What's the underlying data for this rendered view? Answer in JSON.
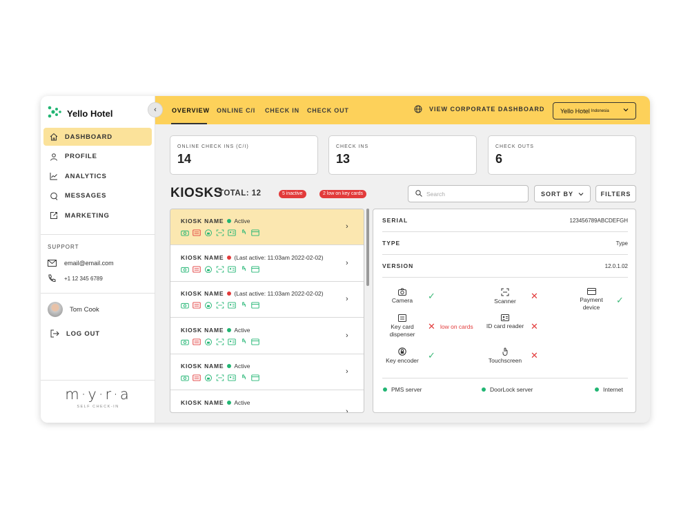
{
  "sidebar": {
    "brand_name": "Yello Hotel",
    "nav": [
      {
        "label": "DASHBOARD",
        "icon": "home-icon"
      },
      {
        "label": "PROFILE",
        "icon": "user-icon"
      },
      {
        "label": "ANALYTICS",
        "icon": "chart-icon"
      },
      {
        "label": "MESSAGES",
        "icon": "chat-icon"
      },
      {
        "label": "MARKETING",
        "icon": "external-link-icon"
      }
    ],
    "support_title": "SUPPORT",
    "email": "email@email.com",
    "phone": "+1 12 345 6789",
    "user_name": "Tom Cook",
    "logout_label": "LOG OUT",
    "footer_logo": "m·y·r·a",
    "footer_sub": "SELF CHECK-IN"
  },
  "topbar": {
    "tabs": [
      "OVERVIEW",
      "ONLINE C/I",
      "CHECK IN",
      "CHECK OUT"
    ],
    "corporate_link": "VIEW CORPORATE DASHBOARD",
    "hotel_select": "Yello Hotel",
    "hotel_select_sub": "Indonesia"
  },
  "stats": [
    {
      "label": "ONLINE CHECK INS (C/I)",
      "value": "14"
    },
    {
      "label": "CHECK INS",
      "value": "13"
    },
    {
      "label": "CHECK OUTS",
      "value": "6"
    }
  ],
  "kiosks": {
    "title": "KIOSKS",
    "total": "TOTAL: 12",
    "badge_inactive": "5 inactive",
    "badge_low": "2 low on key cards",
    "search_placeholder": "Search",
    "sort_label": "SORT BY",
    "filters_label": "FILTERS",
    "rows": [
      {
        "name": "KIOSK NAME",
        "status": "Active",
        "status_color": "#22b573"
      },
      {
        "name": "KIOSK NAME",
        "status": "(Last active: 11:03am 2022-02-02)",
        "status_color": "#e23b3b"
      },
      {
        "name": "KIOSK NAME",
        "status": "(Last active: 11:03am 2022-02-02)",
        "status_color": "#e23b3b"
      },
      {
        "name": "KIOSK NAME",
        "status": "Active",
        "status_color": "#22b573"
      },
      {
        "name": "KIOSK NAME",
        "status": "Active",
        "status_color": "#22b573"
      },
      {
        "name": "KIOSK NAME",
        "status": "Active",
        "status_color": "#22b573"
      }
    ]
  },
  "detail": {
    "serial_label": "SERIAL",
    "serial_value": "123456789ABCDEFGH",
    "type_label": "TYPE",
    "type_value": "Type",
    "version_label": "VERSION",
    "version_value": "12.0.1.02",
    "features": [
      {
        "label": "Camera",
        "icon": "camera-icon",
        "ok": true
      },
      {
        "label": "Scanner",
        "icon": "scanner-icon",
        "ok": false
      },
      {
        "label": "Payment device",
        "icon": "card-icon",
        "ok": true
      },
      {
        "label": "Key card dispenser",
        "icon": "keycard-icon",
        "ok": false,
        "note": "low on cards"
      },
      {
        "label": "ID card reader",
        "icon": "id-card-icon",
        "ok": false
      },
      {
        "label": "Key encoder",
        "icon": "lock-icon",
        "ok": true
      },
      {
        "label": "Touchscreen",
        "icon": "touch-icon",
        "ok": false
      }
    ],
    "servers": [
      "PMS server",
      "DoorLock server",
      "Internet"
    ]
  },
  "colors": {
    "accent_yellow": "#fdd15a",
    "selected_row": "#fbe7b0",
    "ok_green": "#22b573",
    "alert_red": "#e23b3b"
  }
}
